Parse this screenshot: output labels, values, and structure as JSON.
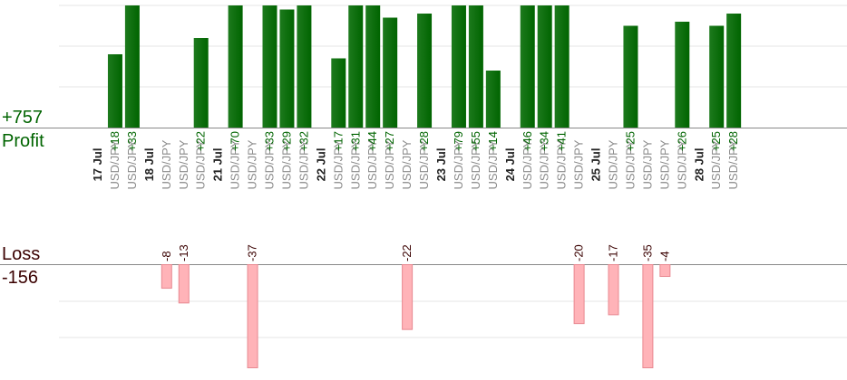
{
  "profit": {
    "label": "Profit",
    "total": "+757"
  },
  "loss": {
    "label": "Loss",
    "total": "-156"
  },
  "colors": {
    "profit_bar": "#006400",
    "profit_text": "#006400",
    "loss_bar_fill": "#ffb3b8",
    "loss_bar_stroke": "#e88890",
    "loss_text": "#3a0000",
    "symbol_text": "#8a8a8a",
    "date_text": "#222222",
    "grid": "#e6e6e6",
    "baseline": "#888888"
  },
  "chart_data": {
    "type": "bar",
    "profit_scale_max": 30,
    "loss_scale_max": 35,
    "columns": [
      {
        "date": "17 Jul"
      },
      {
        "symbol": "USD/JPY",
        "value": 18,
        "label": "+18"
      },
      {
        "symbol": "USD/JPY",
        "value": 33,
        "label": "+33"
      },
      {
        "date": "18 Jul"
      },
      {
        "symbol": "USD/JPY",
        "value": -8,
        "label": "-8"
      },
      {
        "symbol": "USD/JPY",
        "value": -13,
        "label": "-13"
      },
      {
        "symbol": "USD/JPY",
        "value": 22,
        "label": "+22"
      },
      {
        "date": "21 Jul"
      },
      {
        "symbol": "USD/JPY",
        "value": 70,
        "label": "+70"
      },
      {
        "symbol": "USD/JPY",
        "value": -37,
        "label": "-37"
      },
      {
        "symbol": "USD/JPY",
        "value": 33,
        "label": "+33"
      },
      {
        "symbol": "USD/JPY",
        "value": 29,
        "label": "+29"
      },
      {
        "symbol": "USD/JPY",
        "value": 32,
        "label": "+32"
      },
      {
        "date": "22 Jul"
      },
      {
        "symbol": "USD/JPY",
        "value": 17,
        "label": "+17"
      },
      {
        "symbol": "USD/JPY",
        "value": 31,
        "label": "+31"
      },
      {
        "symbol": "USD/JPY",
        "value": 44,
        "label": "+44"
      },
      {
        "symbol": "USD/JPY",
        "value": 27,
        "label": "+27"
      },
      {
        "symbol": "USD/JPY",
        "value": -22,
        "label": "-22"
      },
      {
        "symbol": "USD/JPY",
        "value": 28,
        "label": "+28"
      },
      {
        "date": "23 Jul"
      },
      {
        "symbol": "USD/JPY",
        "value": 79,
        "label": "+79"
      },
      {
        "symbol": "USD/JPY",
        "value": 55,
        "label": "+55"
      },
      {
        "symbol": "USD/JPY",
        "value": 14,
        "label": "+14"
      },
      {
        "date": "24 Jul"
      },
      {
        "symbol": "USD/JPY",
        "value": 46,
        "label": "+46"
      },
      {
        "symbol": "USD/JPY",
        "value": 34,
        "label": "+34"
      },
      {
        "symbol": "USD/JPY",
        "value": 41,
        "label": "+41"
      },
      {
        "symbol": "USD/JPY",
        "value": -20,
        "label": "-20"
      },
      {
        "date": "25 Jul"
      },
      {
        "symbol": "USD/JPY",
        "value": -17,
        "label": "-17"
      },
      {
        "symbol": "USD/JPY",
        "value": 25,
        "label": "+25"
      },
      {
        "symbol": "USD/JPY",
        "value": -35,
        "label": "-35"
      },
      {
        "symbol": "USD/JPY",
        "value": -4,
        "label": "-4"
      },
      {
        "symbol": "USD/JPY",
        "value": 26,
        "label": "+26"
      },
      {
        "date": "28 Jul"
      },
      {
        "symbol": "USD/JPY",
        "value": 25,
        "label": "+25"
      },
      {
        "symbol": "USD/JPY",
        "value": 28,
        "label": "+28"
      }
    ]
  }
}
